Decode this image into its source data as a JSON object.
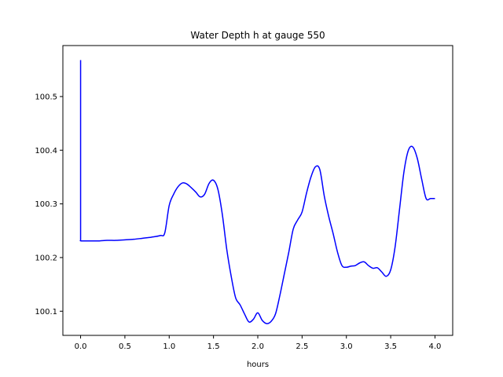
{
  "chart_data": {
    "type": "line",
    "title": "Water Depth h at gauge 550",
    "xlabel": "hours",
    "ylabel": "",
    "xlim": [
      -0.2,
      4.2
    ],
    "ylim": [
      100.055,
      100.595
    ],
    "grid": false,
    "x_ticks": [
      {
        "value": 0.0,
        "label": "0.0"
      },
      {
        "value": 0.5,
        "label": "0.5"
      },
      {
        "value": 1.0,
        "label": "1.0"
      },
      {
        "value": 1.5,
        "label": "1.5"
      },
      {
        "value": 2.0,
        "label": "2.0"
      },
      {
        "value": 2.5,
        "label": "2.5"
      },
      {
        "value": 3.0,
        "label": "3.0"
      },
      {
        "value": 3.5,
        "label": "3.5"
      },
      {
        "value": 4.0,
        "label": "4.0"
      }
    ],
    "y_ticks": [
      {
        "value": 100.1,
        "label": "100.1"
      },
      {
        "value": 100.2,
        "label": "100.2"
      },
      {
        "value": 100.3,
        "label": "100.3"
      },
      {
        "value": 100.4,
        "label": "100.4"
      },
      {
        "value": 100.5,
        "label": "100.5"
      }
    ],
    "series": [
      {
        "color": "#0000ff",
        "x": [
          0.0,
          0.0,
          0.005,
          0.1,
          0.2,
          0.3,
          0.4,
          0.5,
          0.6,
          0.7,
          0.8,
          0.9,
          0.95,
          1.0,
          1.05,
          1.1,
          1.15,
          1.2,
          1.25,
          1.3,
          1.35,
          1.4,
          1.45,
          1.5,
          1.55,
          1.6,
          1.65,
          1.7,
          1.75,
          1.8,
          1.85,
          1.9,
          1.95,
          2.0,
          2.05,
          2.1,
          2.15,
          2.2,
          2.25,
          2.3,
          2.35,
          2.4,
          2.45,
          2.5,
          2.55,
          2.6,
          2.65,
          2.7,
          2.75,
          2.8,
          2.85,
          2.9,
          2.95,
          3.0,
          3.05,
          3.1,
          3.15,
          3.2,
          3.25,
          3.3,
          3.35,
          3.4,
          3.45,
          3.5,
          3.55,
          3.6,
          3.65,
          3.7,
          3.75,
          3.8,
          3.85,
          3.9,
          3.95,
          4.0
        ],
        "y": [
          100.568,
          100.232,
          100.231,
          100.231,
          100.231,
          100.232,
          100.232,
          100.233,
          100.234,
          100.236,
          100.238,
          100.241,
          100.246,
          100.297,
          100.318,
          100.332,
          100.339,
          100.337,
          100.33,
          100.322,
          100.313,
          100.318,
          100.338,
          100.344,
          100.327,
          100.28,
          100.215,
          100.165,
          100.125,
          100.112,
          100.095,
          100.08,
          100.085,
          100.097,
          100.083,
          100.077,
          100.081,
          100.095,
          100.13,
          100.17,
          100.21,
          100.253,
          100.27,
          100.285,
          100.32,
          100.35,
          100.369,
          100.364,
          100.315,
          100.277,
          100.245,
          100.21,
          100.185,
          100.182,
          100.184,
          100.185,
          100.19,
          100.192,
          100.185,
          100.18,
          100.181,
          100.173,
          100.165,
          100.177,
          100.22,
          100.29,
          100.36,
          100.4,
          100.406,
          100.385,
          100.346,
          100.31,
          100.31,
          100.31
        ]
      }
    ]
  }
}
